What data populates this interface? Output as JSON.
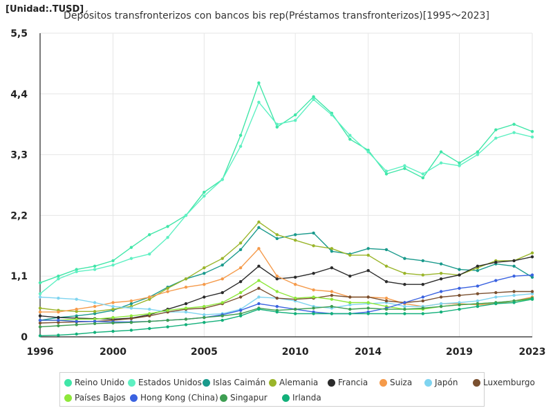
{
  "unit_label": "[Unidad:.TUSD]",
  "title": "Depósitos transfronterizos con bancos bis rep(Préstamos transfronterizos)[1995～2023]",
  "chart_data": {
    "type": "line",
    "title": "Depósitos transfronterizos con bancos bis rep(Préstamos transfronterizos)[1995～2023]",
    "xlabel": "",
    "ylabel": "",
    "unit": "TUSD",
    "xlim": [
      1996,
      2023
    ],
    "ylim": [
      0,
      5.5
    ],
    "x_ticks": [
      1996,
      2000,
      2005,
      2010,
      2014,
      2019,
      2023
    ],
    "y_ticks": [
      0,
      1.1,
      2.2,
      3.3,
      4.4,
      5.5
    ],
    "y_tick_labels": [
      "0",
      "1,1",
      "2,2",
      "3,3",
      "4,4",
      "5,5"
    ],
    "grid": true,
    "legend_position": "bottom",
    "x": [
      1996,
      1997,
      1998,
      1999,
      2000,
      2001,
      2002,
      2003,
      2004,
      2005,
      2006,
      2007,
      2008,
      2009,
      2010,
      2011,
      2012,
      2013,
      2014,
      2015,
      2016,
      2017,
      2018,
      2019,
      2020,
      2021,
      2022,
      2023
    ],
    "series": [
      {
        "name": "Reino Unido",
        "color": "#40e6a8",
        "values": [
          0.98,
          1.1,
          1.22,
          1.28,
          1.38,
          1.62,
          1.85,
          2.0,
          2.2,
          2.62,
          2.85,
          3.65,
          4.6,
          3.8,
          4.02,
          4.35,
          4.05,
          3.58,
          3.38,
          2.95,
          3.05,
          2.88,
          3.35,
          3.15,
          3.35,
          3.75,
          3.85,
          3.72
        ]
      },
      {
        "name": "Estados Unidos",
        "color": "#5ef0c2",
        "values": [
          0.78,
          1.05,
          1.18,
          1.22,
          1.3,
          1.42,
          1.5,
          1.8,
          2.2,
          2.55,
          2.85,
          3.45,
          4.25,
          3.85,
          3.92,
          4.3,
          4.02,
          3.65,
          3.35,
          3.0,
          3.1,
          2.95,
          3.15,
          3.1,
          3.3,
          3.6,
          3.7,
          3.62
        ]
      },
      {
        "name": "Islas Caimán",
        "color": "#1a9a8c",
        "values": [
          0.3,
          0.35,
          0.38,
          0.42,
          0.48,
          0.6,
          0.72,
          0.9,
          1.05,
          1.15,
          1.3,
          1.58,
          1.98,
          1.78,
          1.85,
          1.88,
          1.55,
          1.5,
          1.6,
          1.58,
          1.42,
          1.38,
          1.32,
          1.22,
          1.2,
          1.32,
          1.28,
          1.08
        ]
      },
      {
        "name": "Alemania",
        "color": "#9ab52a",
        "values": [
          0.52,
          0.48,
          0.46,
          0.46,
          0.5,
          0.55,
          0.68,
          0.88,
          1.05,
          1.25,
          1.42,
          1.7,
          2.08,
          1.85,
          1.75,
          1.65,
          1.6,
          1.48,
          1.48,
          1.28,
          1.15,
          1.12,
          1.15,
          1.12,
          1.25,
          1.38,
          1.38,
          1.52
        ]
      },
      {
        "name": "Francia",
        "color": "#2b2b2b",
        "values": [
          0.38,
          0.35,
          0.34,
          0.33,
          0.32,
          0.34,
          0.4,
          0.5,
          0.6,
          0.72,
          0.8,
          1.0,
          1.28,
          1.05,
          1.08,
          1.15,
          1.25,
          1.1,
          1.2,
          1.0,
          0.95,
          0.95,
          1.05,
          1.12,
          1.28,
          1.35,
          1.38,
          1.45
        ]
      },
      {
        "name": "Suiza",
        "color": "#f59a4a",
        "values": [
          0.45,
          0.45,
          0.5,
          0.55,
          0.62,
          0.65,
          0.72,
          0.82,
          0.9,
          0.95,
          1.05,
          1.25,
          1.6,
          1.1,
          0.95,
          0.85,
          0.82,
          0.72,
          0.72,
          0.7,
          0.6,
          0.55,
          0.6,
          0.6,
          0.58,
          0.6,
          0.65,
          0.72
        ]
      },
      {
        "name": "Japón",
        "color": "#7fd4f0",
        "values": [
          0.72,
          0.7,
          0.68,
          0.62,
          0.55,
          0.52,
          0.5,
          0.45,
          0.45,
          0.4,
          0.42,
          0.5,
          0.72,
          0.7,
          0.65,
          0.55,
          0.52,
          0.58,
          0.6,
          0.62,
          0.55,
          0.55,
          0.6,
          0.62,
          0.65,
          0.72,
          0.75,
          0.78
        ]
      },
      {
        "name": "Luxemburgo",
        "color": "#7a5030",
        "values": [
          0.25,
          0.26,
          0.27,
          0.28,
          0.3,
          0.33,
          0.38,
          0.45,
          0.5,
          0.52,
          0.6,
          0.72,
          0.88,
          0.7,
          0.68,
          0.7,
          0.75,
          0.72,
          0.72,
          0.65,
          0.62,
          0.65,
          0.72,
          0.75,
          0.78,
          0.8,
          0.82,
          0.82
        ]
      },
      {
        "name": "Países Bajos",
        "color": "#8ee83a",
        "values": [
          0.3,
          0.3,
          0.32,
          0.32,
          0.35,
          0.38,
          0.42,
          0.48,
          0.52,
          0.55,
          0.62,
          0.8,
          1.02,
          0.82,
          0.7,
          0.72,
          0.68,
          0.62,
          0.62,
          0.55,
          0.5,
          0.5,
          0.55,
          0.58,
          0.6,
          0.62,
          0.65,
          0.68
        ]
      },
      {
        "name": "Hong Kong (China)",
        "color": "#3a62e0",
        "values": [
          0.3,
          0.3,
          0.28,
          0.28,
          0.27,
          0.27,
          0.28,
          0.3,
          0.32,
          0.35,
          0.4,
          0.48,
          0.6,
          0.55,
          0.5,
          0.45,
          0.42,
          0.42,
          0.45,
          0.52,
          0.62,
          0.72,
          0.82,
          0.88,
          0.92,
          1.02,
          1.1,
          1.12
        ]
      },
      {
        "name": "Singapur",
        "color": "#3e9e52",
        "values": [
          0.18,
          0.2,
          0.22,
          0.24,
          0.25,
          0.26,
          0.28,
          0.3,
          0.32,
          0.35,
          0.38,
          0.42,
          0.52,
          0.48,
          0.5,
          0.52,
          0.55,
          0.5,
          0.52,
          0.5,
          0.5,
          0.52,
          0.55,
          0.58,
          0.6,
          0.62,
          0.65,
          0.7
        ]
      },
      {
        "name": "Irlanda",
        "color": "#12b07a",
        "values": [
          0.02,
          0.03,
          0.05,
          0.08,
          0.1,
          0.12,
          0.15,
          0.18,
          0.22,
          0.26,
          0.3,
          0.38,
          0.5,
          0.45,
          0.42,
          0.42,
          0.42,
          0.42,
          0.42,
          0.42,
          0.42,
          0.42,
          0.45,
          0.5,
          0.55,
          0.6,
          0.62,
          0.68
        ]
      }
    ]
  }
}
